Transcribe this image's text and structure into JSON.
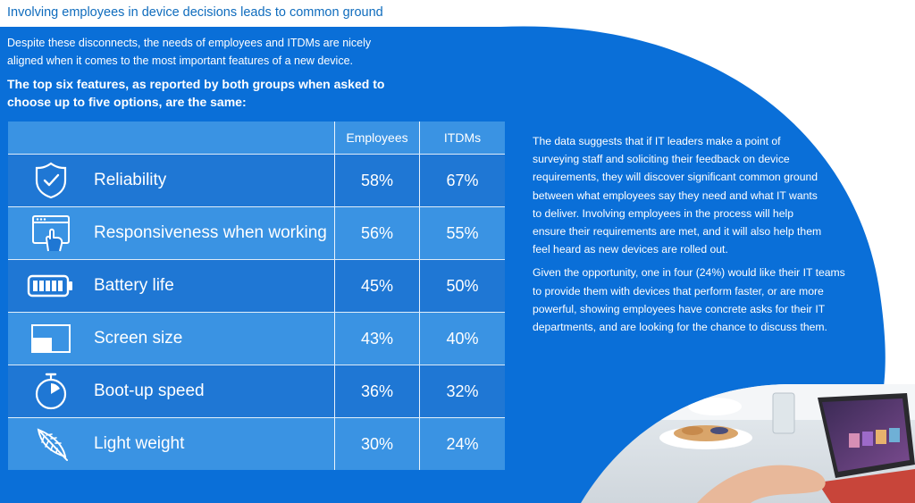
{
  "heading": "Involving employees in device decisions leads to common ground",
  "intro": "Despite these disconnects, the needs of employees and ITDMs are nicely aligned when it comes to the most important features of a new device.",
  "lead": "The top six features, as reported by both groups when asked to choose up to five options, are the same:",
  "table": {
    "headers": {
      "employees": "Employees",
      "itdms": "ITDMs"
    },
    "rows": [
      {
        "icon": "shield-check-icon",
        "feature": "Reliability",
        "employees": "58%",
        "itdms": "67%"
      },
      {
        "icon": "touch-screen-icon",
        "feature": "Responsiveness when working",
        "employees": "56%",
        "itdms": "55%"
      },
      {
        "icon": "battery-icon",
        "feature": "Battery life",
        "employees": "45%",
        "itdms": "50%"
      },
      {
        "icon": "screen-size-icon",
        "feature": "Screen size",
        "employees": "43%",
        "itdms": "40%"
      },
      {
        "icon": "stopwatch-icon",
        "feature": "Boot-up speed",
        "employees": "36%",
        "itdms": "32%"
      },
      {
        "icon": "feather-icon",
        "feature": "Light weight",
        "employees": "30%",
        "itdms": "24%"
      }
    ]
  },
  "right": {
    "p1": "The data suggests that if IT leaders make a point of surveying staff and soliciting their feedback on device requirements, they will discover significant common ground between what employees say they need and what IT wants to deliver. Involving employees in the process will help ensure their requirements are met, and it will also help them feel heard as new devices are rolled out.",
    "p2": "Given the opportunity, one in four (24%) would like their IT teams to provide them with devices that perform faster, or are more powerful, showing employees have concrete asks for their IT departments, and are looking for the chance to discuss them."
  },
  "colors": {
    "brand_blue": "#0f6cbd",
    "background_blue": "#0a6fd8",
    "row_dark": "#1f77d4",
    "row_light": "#3a93e3"
  }
}
